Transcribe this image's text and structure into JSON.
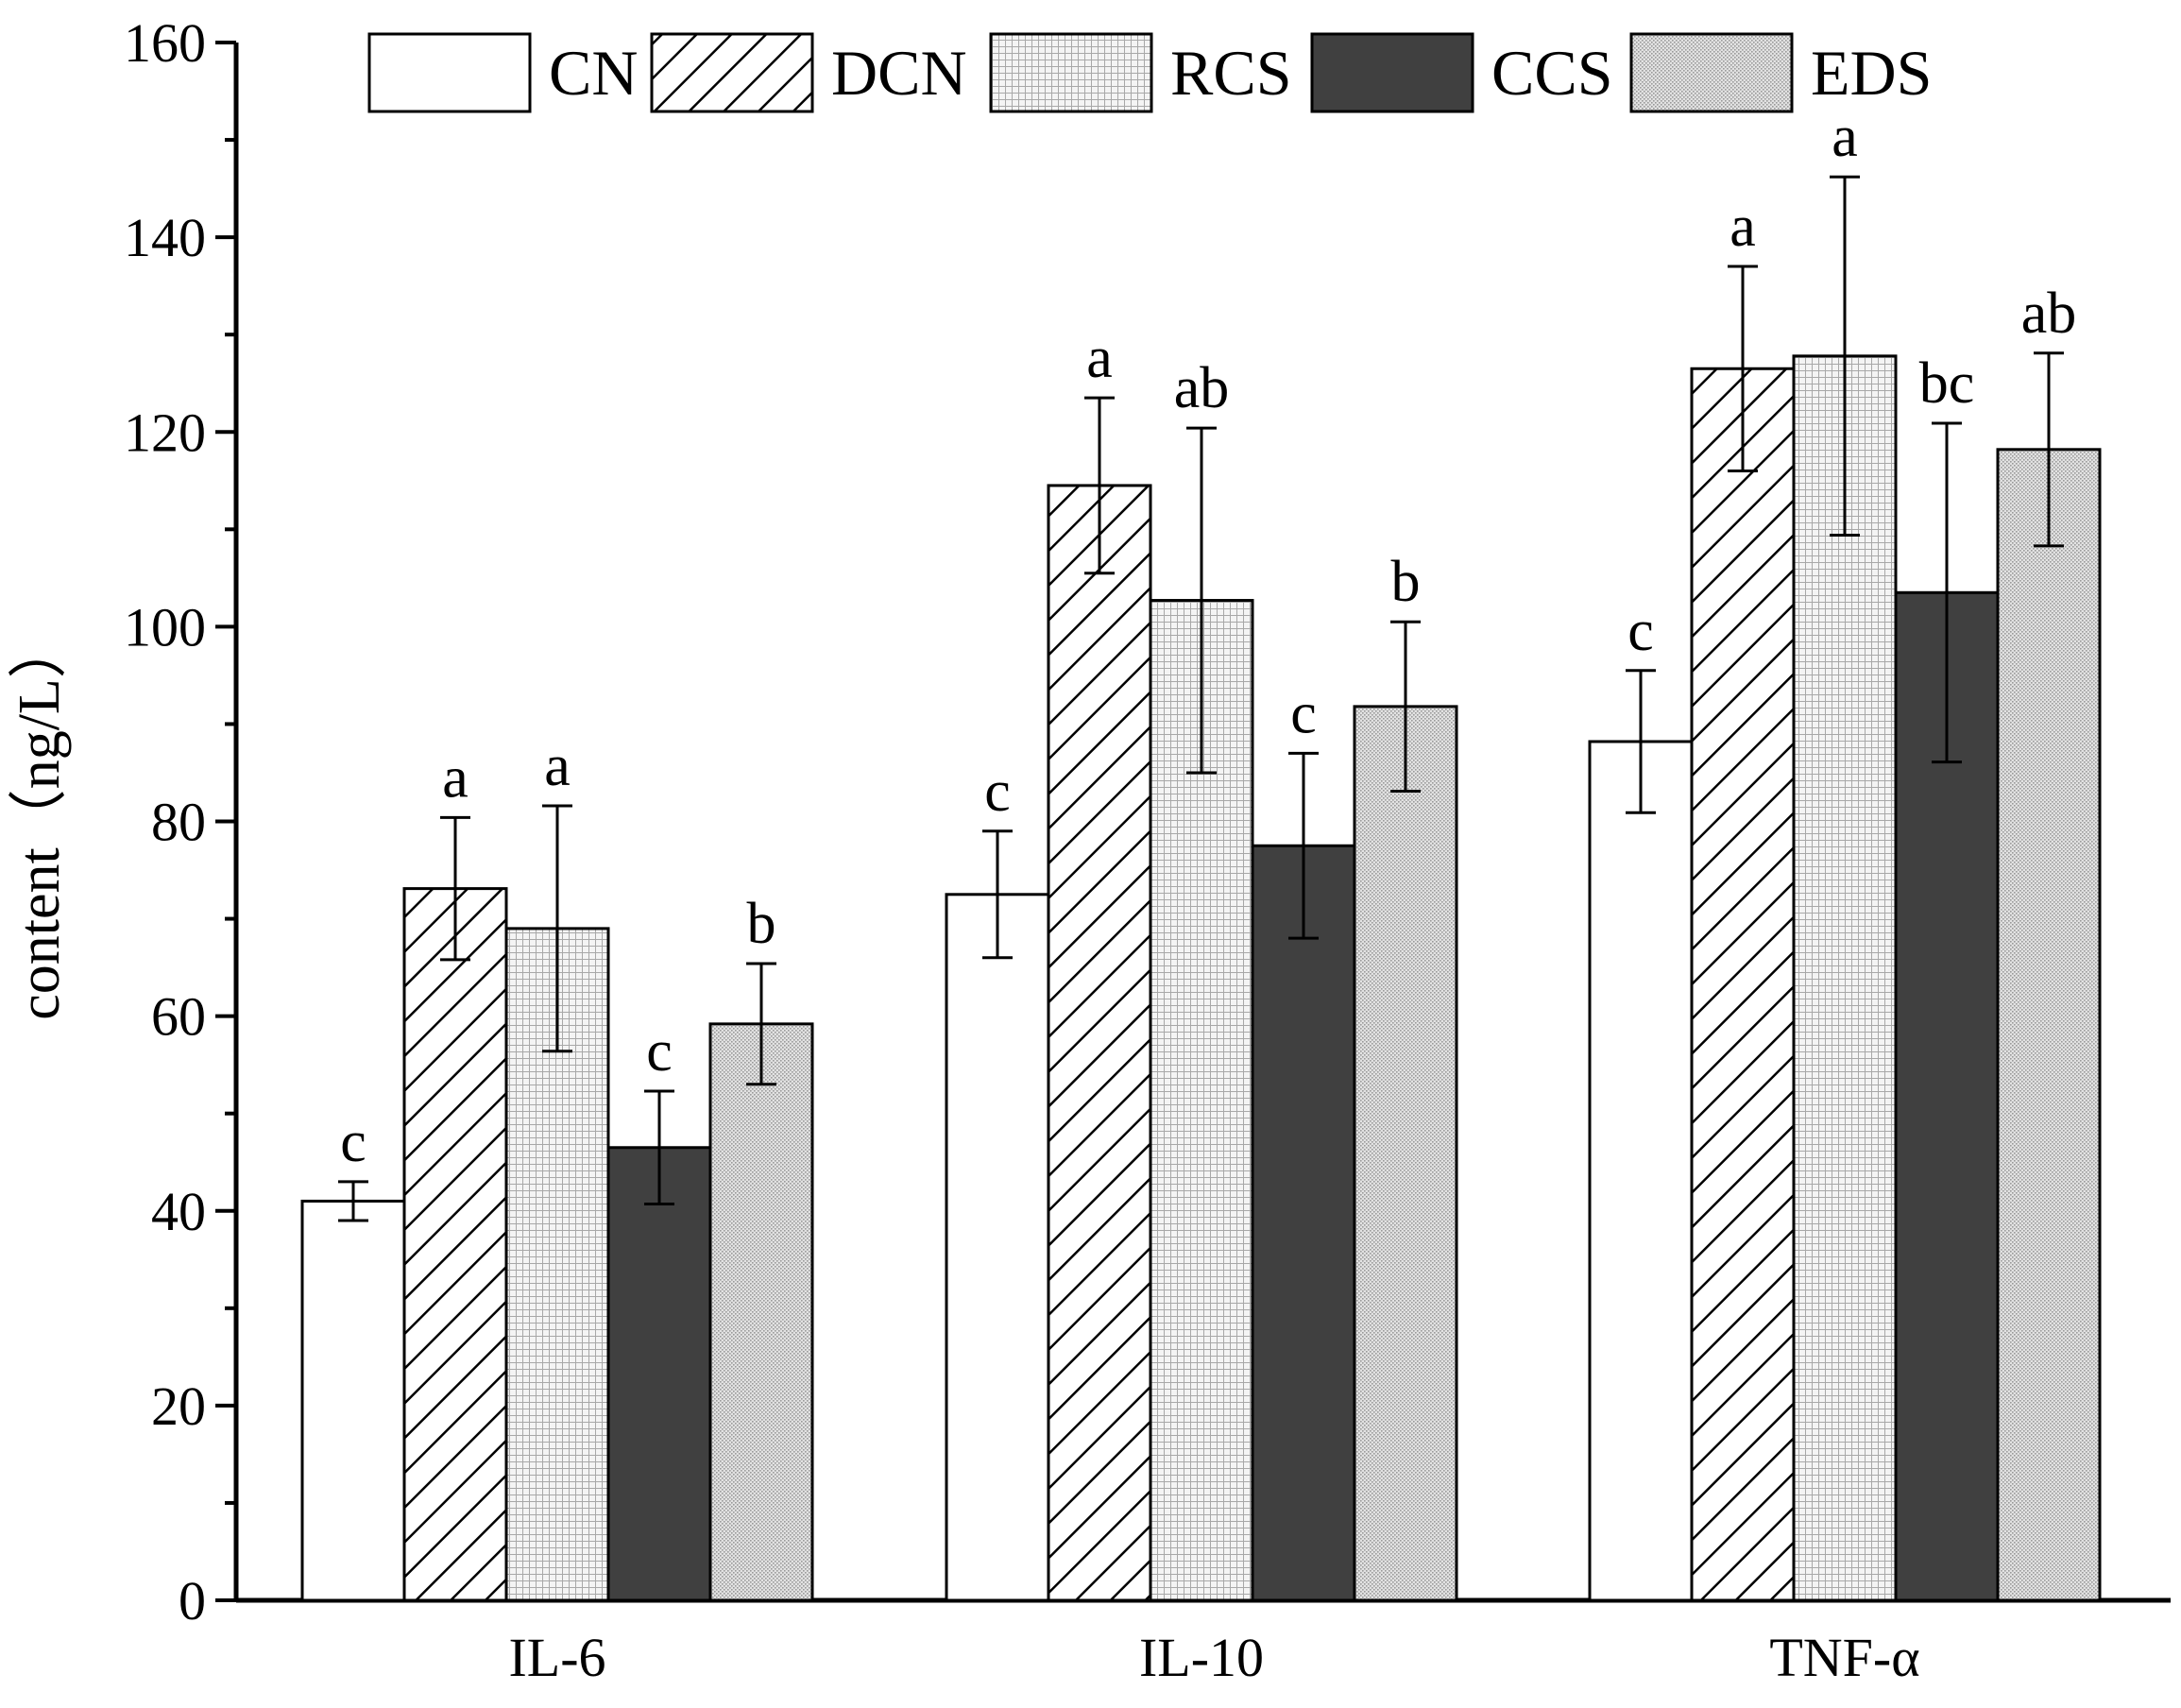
{
  "chart_data": {
    "type": "bar",
    "title": "",
    "xlabel": "",
    "ylabel": "content（ng/L）",
    "ylim": [
      0,
      160
    ],
    "yticks": [
      0,
      20,
      40,
      60,
      80,
      100,
      120,
      140,
      160
    ],
    "grid": false,
    "legend_position": "top",
    "categories": [
      "IL-6",
      "IL-10",
      "TNF-α"
    ],
    "series": [
      {
        "name": "CN",
        "pattern": "blank",
        "color": "#ffffff",
        "values": [
          41.0,
          72.5,
          88.2
        ],
        "errors": [
          2.0,
          6.5,
          7.3
        ],
        "labels": [
          "c",
          "c",
          "c"
        ]
      },
      {
        "name": "DCN",
        "pattern": "hatch",
        "color": "#ffffff",
        "values": [
          73.1,
          114.5,
          126.5
        ],
        "errors": [
          7.3,
          9.0,
          10.5
        ],
        "labels": [
          "a",
          "a",
          "a"
        ]
      },
      {
        "name": "RCS",
        "pattern": "grid",
        "color": "#eeeeee",
        "values": [
          69.0,
          102.7,
          127.8
        ],
        "errors": [
          12.6,
          17.7,
          18.4
        ],
        "labels": [
          "a",
          "ab",
          "a"
        ]
      },
      {
        "name": "CCS",
        "pattern": "solid",
        "color": "#404040",
        "values": [
          46.5,
          77.5,
          103.5
        ],
        "errors": [
          5.8,
          9.5,
          17.4
        ],
        "labels": [
          "c",
          "c",
          "bc"
        ]
      },
      {
        "name": "EDS",
        "pattern": "stipple",
        "color": "#dddddd",
        "values": [
          59.2,
          91.8,
          118.2
        ],
        "errors": [
          6.2,
          8.7,
          9.9
        ],
        "labels": [
          "b",
          "b",
          "ab"
        ]
      }
    ]
  }
}
